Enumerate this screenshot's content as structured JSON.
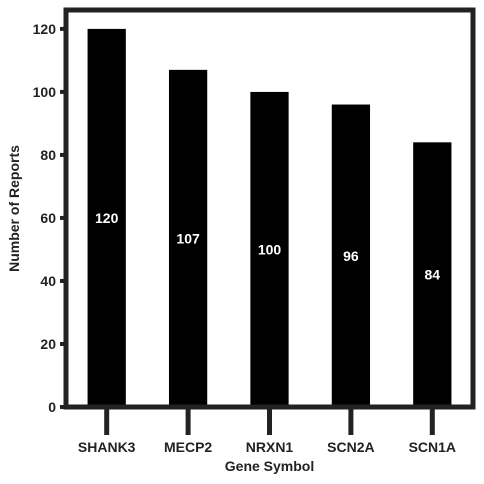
{
  "chart_data": {
    "type": "bar",
    "categories": [
      "SHANK3",
      "MECP2",
      "NRXN1",
      "SCN2A",
      "SCN1A"
    ],
    "values": [
      120,
      107,
      100,
      96,
      84
    ],
    "data_labels": [
      "120",
      "107",
      "100",
      "96",
      "84"
    ],
    "title": "",
    "xlabel": "Gene Symbol",
    "ylabel": "Number of Reports",
    "ylim": [
      0,
      126
    ],
    "yticks": [
      0,
      20,
      40,
      60,
      80,
      100,
      120
    ],
    "grid": false,
    "legend": "none",
    "bar_color": "#000000",
    "axis_color": "#222222",
    "data_label_color": "#ffffff"
  }
}
